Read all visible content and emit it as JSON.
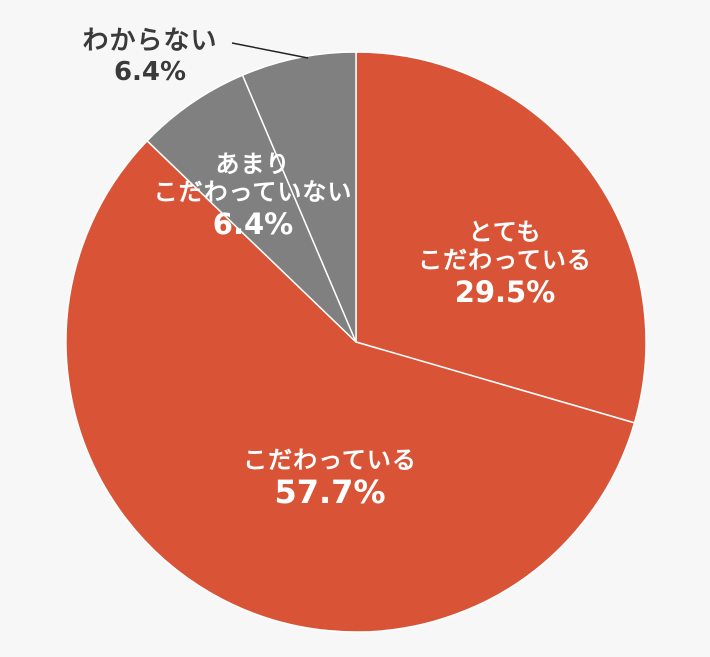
{
  "chart_data": {
    "type": "pie",
    "title": "",
    "start_angle": "12 o'clock, clockwise",
    "categories": [
      "とても こだわっている",
      "こだわっている",
      "あまり こだわっていない",
      "わからない"
    ],
    "values": [
      29.5,
      57.7,
      6.4,
      6.4
    ],
    "unit": "%",
    "colors": [
      "#d95436",
      "#d95436",
      "#808080",
      "#808080"
    ],
    "slices": [
      {
        "label_lines": [
          "とても",
          "こだわっている"
        ],
        "pct_text": "29.5%",
        "value": 29.5,
        "color": "#d95436",
        "label_color": "#ffffff"
      },
      {
        "label_lines": [
          "こだわっている"
        ],
        "pct_text": "57.7%",
        "value": 57.7,
        "color": "#d95436",
        "label_color": "#ffffff"
      },
      {
        "label_lines": [
          "あまり",
          "こだわっていない"
        ],
        "pct_text": "6.4%",
        "value": 6.4,
        "color": "#808080",
        "label_color": "#ffffff"
      },
      {
        "label_lines": [
          "わからない"
        ],
        "pct_text": "6.4%",
        "value": 6.4,
        "color": "#808080",
        "label_color": "#3a3a3a",
        "leader_line": true
      }
    ],
    "legend": "none",
    "background": "#f7f7f7"
  },
  "labels": {
    "s0": {
      "line1": "とても",
      "line2": "こだわっている",
      "pct": "29.5%"
    },
    "s1": {
      "line1": "こだわっている",
      "pct": "57.7%"
    },
    "s2": {
      "line1": "あまり",
      "line2": "こだわっていない",
      "pct": "6.4%"
    },
    "s3": {
      "line1": "わからない",
      "pct": "6.4%"
    }
  }
}
